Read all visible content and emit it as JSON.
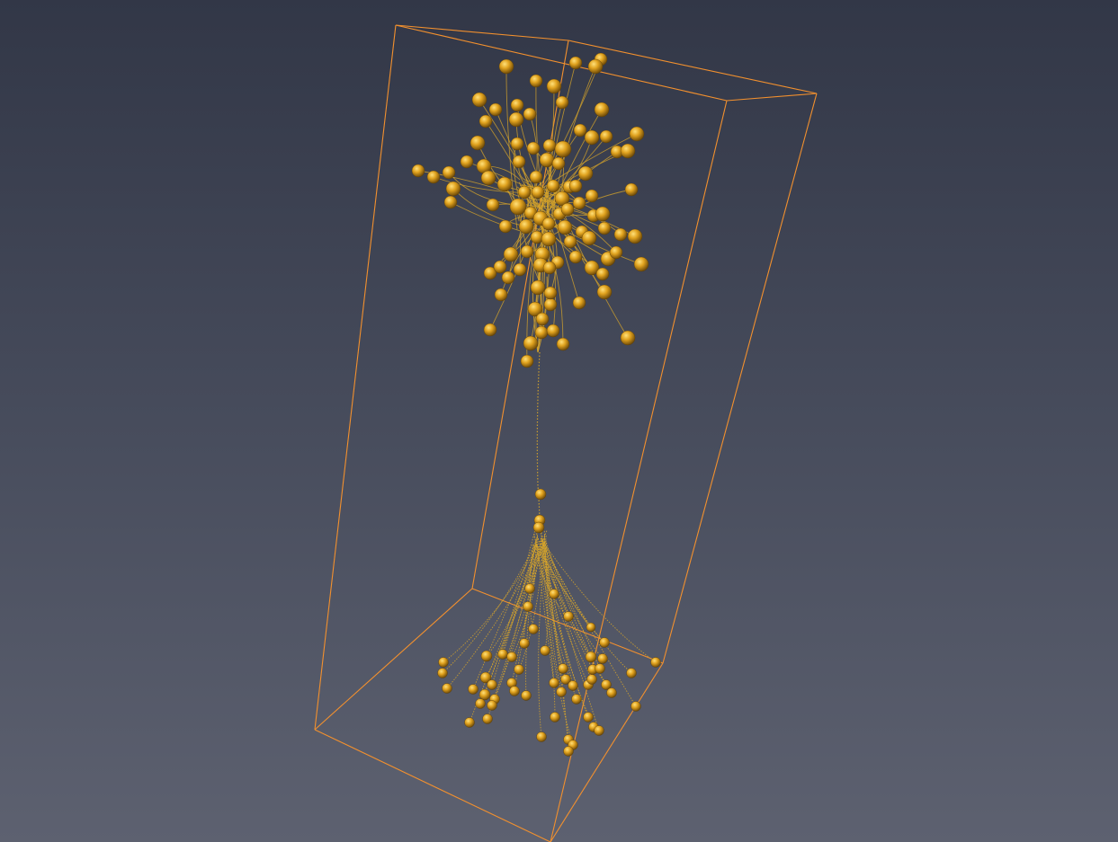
{
  "viewer": {
    "background_top": "#323747",
    "background_bottom": "#5d6170"
  },
  "bounding_box": {
    "color": "#f2902e"
  },
  "neuron": {
    "branch_color": "#d8a62a",
    "node_color_light": "#ffe07a",
    "node_color_mid": "#e0a21e",
    "node_color_dark": "#6e4a08"
  }
}
